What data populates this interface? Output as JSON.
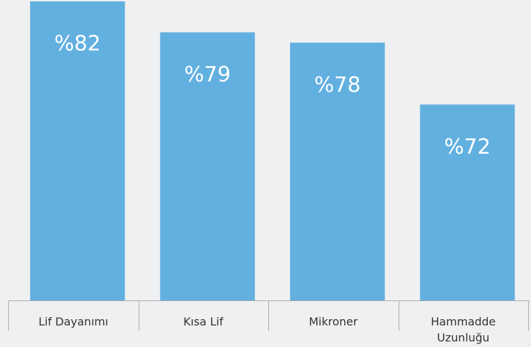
{
  "chart_data": {
    "type": "bar",
    "categories": [
      "Lif Dayanımı",
      "Kısa Lif",
      "Mikroner",
      "Hammadde Uzunluğu"
    ],
    "values": [
      82,
      79,
      78,
      72
    ],
    "value_labels": [
      "%82",
      "%79",
      "%78",
      "%72"
    ],
    "color": "#62b0e0",
    "ylim": [
      53,
      82
    ]
  }
}
